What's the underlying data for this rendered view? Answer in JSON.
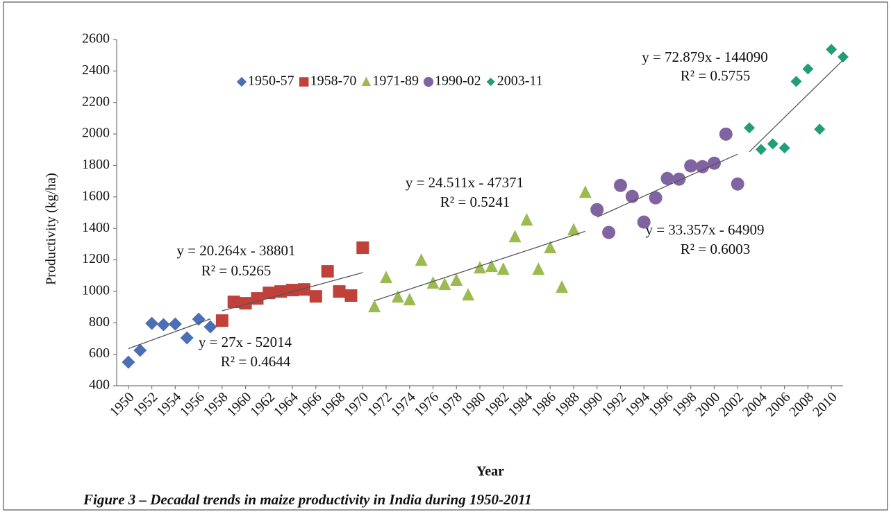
{
  "chart_data": {
    "type": "scatter",
    "x_label": "Year",
    "y_label": "Productivity (kg/ha)",
    "caption": "Figure 3 –   Decadal trends in maize productivity in India during 1950-2011",
    "xlim": [
      1949,
      2011
    ],
    "xticks": [
      1950,
      1952,
      1954,
      1956,
      1958,
      1960,
      1962,
      1964,
      1966,
      1968,
      1970,
      1972,
      1974,
      1976,
      1978,
      1980,
      1982,
      1984,
      1986,
      1988,
      1990,
      1992,
      1994,
      1996,
      1998,
      2000,
      2002,
      2004,
      2006,
      2008,
      2010
    ],
    "ylim": [
      400,
      2600
    ],
    "yticks": [
      400,
      600,
      800,
      1000,
      1200,
      1400,
      1600,
      1800,
      2000,
      2200,
      2400,
      2600
    ],
    "grid": false,
    "legend": "top",
    "series": [
      {
        "name": "1950-57",
        "color": "#4a6fb5",
        "marker": "diamond",
        "x": [
          1950,
          1951,
          1952,
          1953,
          1954,
          1955,
          1956,
          1957
        ],
        "values": [
          550,
          625,
          796,
          788,
          792,
          704,
          823,
          774
        ],
        "trendline": {
          "equation": "y = 27x - 52014",
          "r2": "R² = 0.4644",
          "slope": 27,
          "intercept": -52014
        }
      },
      {
        "name": "1958-70",
        "color": "#c0403a",
        "marker": "square",
        "x": [
          1958,
          1959,
          1960,
          1961,
          1962,
          1963,
          1964,
          1965,
          1966,
          1967,
          1968,
          1969,
          1970
        ],
        "values": [
          814,
          933,
          924,
          955,
          990,
          999,
          1008,
          1012,
          968,
          1127,
          999,
          973,
          1277
        ],
        "trendline": {
          "equation": "y = 20.264x - 38801",
          "r2": "R² = 0.5265",
          "slope": 20.264,
          "intercept": -38801
        }
      },
      {
        "name": "1971-89",
        "color": "#9bbb50",
        "marker": "triangle",
        "x": [
          1971,
          1972,
          1973,
          1974,
          1975,
          1976,
          1977,
          1978,
          1979,
          1980,
          1981,
          1982,
          1983,
          1984,
          1985,
          1986,
          1987,
          1988,
          1989
        ],
        "values": [
          902,
          1087,
          964,
          946,
          1197,
          1052,
          1043,
          1070,
          977,
          1149,
          1158,
          1140,
          1347,
          1453,
          1140,
          1277,
          1026,
          1391,
          1629
        ],
        "trendline": {
          "equation": "y = 24.511x - 47371",
          "r2": "R² = 0.5241",
          "slope": 24.511,
          "intercept": -47371
        }
      },
      {
        "name": "1990-02",
        "color": "#8064a2",
        "marker": "circle",
        "x": [
          1990,
          1991,
          1992,
          1993,
          1994,
          1995,
          1996,
          1997,
          1998,
          1999,
          2000,
          2001,
          2002
        ],
        "values": [
          1519,
          1374,
          1673,
          1603,
          1440,
          1594,
          1717,
          1713,
          1797,
          1792,
          1814,
          1999,
          1682
        ],
        "trendline": {
          "equation": "y = 33.357x - 64909",
          "r2": "R² = 0.6003",
          "slope": 33.357,
          "intercept": -64909
        }
      },
      {
        "name": "2003-11",
        "color": "#1f9e78",
        "marker": "diamond-small",
        "x": [
          2003,
          2004,
          2005,
          2006,
          2007,
          2008,
          2009,
          2010,
          2011
        ],
        "values": [
          2039,
          1902,
          1937,
          1911,
          2334,
          2413,
          2030,
          2537,
          2489
        ],
        "trendline": {
          "equation": "y = 72.879x - 144090",
          "r2": "R² = 0.5755",
          "slope": 72.879,
          "intercept": -144090
        }
      }
    ]
  }
}
